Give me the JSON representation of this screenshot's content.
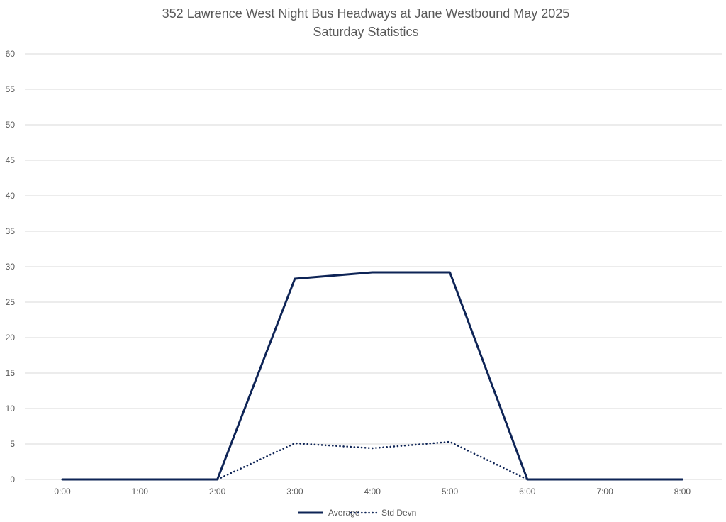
{
  "chart_data": {
    "type": "line",
    "title": "352 Lawrence West Night Bus Headways at Jane Westbound May 2025",
    "subtitle": "Saturday Statistics",
    "xlabel": "",
    "ylabel": "",
    "categories": [
      "0:00",
      "1:00",
      "2:00",
      "3:00",
      "4:00",
      "5:00",
      "6:00",
      "7:00",
      "8:00"
    ],
    "ylim": [
      0,
      60
    ],
    "yticks": [
      0,
      5,
      10,
      15,
      20,
      25,
      30,
      35,
      40,
      45,
      50,
      55,
      60
    ],
    "grid": true,
    "legend_position": "bottom",
    "series": [
      {
        "name": "Average",
        "line_style": "solid",
        "color": "#0e2456",
        "values": [
          0,
          0,
          0,
          28.3,
          29.2,
          29.2,
          0,
          0,
          0
        ]
      },
      {
        "name": "Std Devn",
        "line_style": "dotted",
        "color": "#0e2456",
        "values": [
          0,
          0,
          0,
          5.1,
          4.4,
          5.3,
          0,
          0,
          0
        ]
      }
    ]
  }
}
